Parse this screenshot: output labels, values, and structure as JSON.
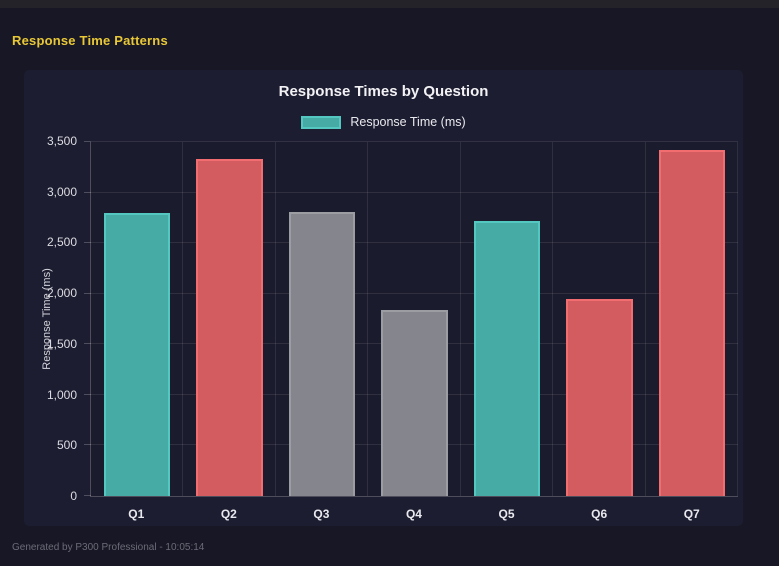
{
  "page": {
    "header_title": "Response Time Patterns",
    "accent_color": "#e9c837",
    "footer": "Generated by P300 Professional - 10:05:14"
  },
  "chart": {
    "title": "Response Times by Question",
    "legend_label": "Response Time (ms)"
  },
  "chart_data": {
    "type": "bar",
    "title": "Response Times by Question",
    "categories": [
      "Q1",
      "Q2",
      "Q3",
      "Q4",
      "Q5",
      "Q6",
      "Q7"
    ],
    "values": [
      2800,
      3330,
      2810,
      1840,
      2720,
      1950,
      3420
    ],
    "bar_color_keys": [
      "teal",
      "red",
      "gray",
      "gray",
      "teal",
      "red",
      "red"
    ],
    "colors": {
      "teal": {
        "fill": "#45aba4",
        "border": "#54c8c0"
      },
      "red": {
        "fill": "#d25c60",
        "border": "#f26d70"
      },
      "gray": {
        "fill": "#85858d",
        "border": "#9c9ca3"
      }
    },
    "xlabel": "",
    "ylabel": "Response Time (ms)",
    "ylim": [
      0,
      3500
    ],
    "ytick_step": 500,
    "yticks": [
      "0",
      "500",
      "1,000",
      "1,500",
      "2,000",
      "2,500",
      "3,000",
      "3,500"
    ],
    "legend": [
      "Response Time (ms)"
    ],
    "legend_position": "top",
    "grid": true
  }
}
